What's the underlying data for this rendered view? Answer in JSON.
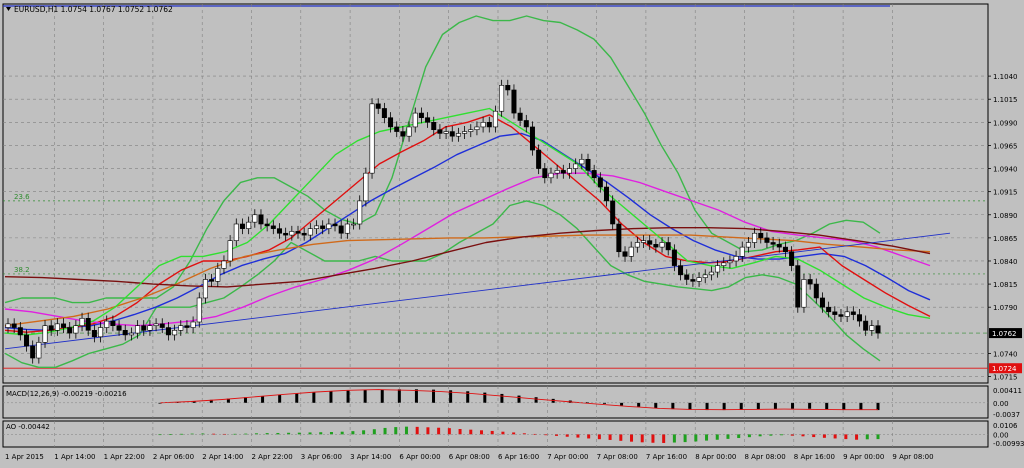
{
  "chart_data": [
    {
      "type": "candlestick",
      "panel": "main",
      "title": "EURUSD,H1  1.0754 1.0767 1.0752 1.0762",
      "symbol": "EURUSD,H1",
      "ohlc_header": "1.0754 1.0767 1.0752 1.0762",
      "ylim": [
        1.0708,
        1.1118
      ],
      "y_ticks": [
        1.104,
        1.1015,
        1.099,
        1.0965,
        1.094,
        1.0915,
        1.089,
        1.0865,
        1.084,
        1.0815,
        1.079,
        1.074,
        1.0715
      ],
      "y_ticks_labels": [
        "1.1040",
        "1.1015",
        "1.0990",
        "1.0965",
        "1.0940",
        "1.0915",
        "1.0890",
        "1.0865",
        "1.0840",
        "1.0815",
        "1.0790",
        "1.0740",
        "1.0715"
      ],
      "current_price": 1.0762,
      "current_price_label": "1.0762",
      "alert_price": 1.0724,
      "alert_price_label": "1.0724",
      "fib_levels": [
        {
          "label": "23.6",
          "value": 1.0905
        },
        {
          "label": "38.2",
          "value": 1.0826
        }
      ],
      "x_labels": [
        "1 Apr 2015",
        "1 Apr 14:00",
        "1 Apr 22:00",
        "2 Apr 06:00",
        "2 Apr 14:00",
        "2 Apr 22:00",
        "3 Apr 06:00",
        "3 Apr 14:00",
        "6 Apr 00:00",
        "6 Apr 08:00",
        "6 Apr 16:00",
        "7 Apr 00:00",
        "7 Apr 08:00",
        "7 Apr 16:00",
        "8 Apr 00:00",
        "8 Apr 08:00",
        "8 Apr 16:00",
        "9 Apr 00:00",
        "9 Apr 08:00"
      ],
      "candles_close": [
        1.0772,
        1.0768,
        1.076,
        1.0748,
        1.0735,
        1.0752,
        1.077,
        1.0765,
        1.0772,
        1.0768,
        1.0762,
        1.077,
        1.0778,
        1.0765,
        1.0758,
        1.0768,
        1.0775,
        1.077,
        1.0765,
        1.076,
        1.0762,
        1.077,
        1.0765,
        1.077,
        1.0772,
        1.0768,
        1.076,
        1.0765,
        1.077,
        1.0768,
        1.0774,
        1.08,
        1.082,
        1.0818,
        1.0832,
        1.084,
        1.0862,
        1.088,
        1.0875,
        1.0882,
        1.089,
        1.088,
        1.0878,
        1.0875,
        1.087,
        1.0868,
        1.0872,
        1.087,
        1.0868,
        1.0875,
        1.0878,
        1.0875,
        1.088,
        1.0878,
        1.087,
        1.088,
        1.088,
        1.0905,
        1.0935,
        1.101,
        1.1005,
        1.0995,
        1.0985,
        1.098,
        1.0975,
        1.0985,
        1.1,
        1.0995,
        1.099,
        1.0982,
        1.0978,
        1.098,
        1.0975,
        1.0978,
        1.098,
        1.0982,
        1.0985,
        1.099,
        1.0985,
        1.1002,
        1.103,
        1.1025,
        1.1,
        1.0992,
        1.0985,
        1.096,
        1.094,
        1.093,
        1.0935,
        1.0938,
        1.0935,
        1.094,
        1.0945,
        1.095,
        1.0938,
        1.093,
        1.092,
        1.0905,
        1.088,
        1.085,
        1.0845,
        1.0855,
        1.086,
        1.0862,
        1.0858,
        1.0855,
        1.086,
        1.0852,
        1.0835,
        1.0825,
        1.082,
        1.0818,
        1.0822,
        1.0825,
        1.0828,
        1.0835,
        1.0838,
        1.084,
        1.0845,
        1.0855,
        1.086,
        1.087,
        1.0865,
        1.086,
        1.0858,
        1.0855,
        1.085,
        1.0835,
        1.079,
        1.082,
        1.0815,
        1.08,
        1.079,
        1.0785,
        1.0782,
        1.078,
        1.0785,
        1.0782,
        1.0775,
        1.0765,
        1.077,
        1.0762
      ],
      "series": [
        {
          "name": "BB upper",
          "color": "#3cb84a",
          "values": [
            1.0795,
            1.08,
            1.08,
            1.08,
            1.0795,
            1.0795,
            1.08,
            1.08,
            1.08,
            1.08,
            1.0812,
            1.084,
            1.0875,
            1.0905,
            1.0925,
            1.093,
            1.093,
            1.092,
            1.091,
            1.0895,
            1.0885,
            1.088,
            1.089,
            1.093,
            1.099,
            1.105,
            1.1085,
            1.1098,
            1.1105,
            1.11,
            1.11,
            1.1105,
            1.11,
            1.1098,
            1.109,
            1.108,
            1.106,
            1.103,
            1.1,
            1.0965,
            1.0935,
            1.0895,
            1.087,
            1.086,
            1.085,
            1.0852,
            1.0858,
            1.0862,
            1.087,
            1.088,
            1.0884,
            1.0882,
            1.087
          ]
        },
        {
          "name": "BB lower",
          "color": "#3cb84a",
          "values": [
            1.074,
            1.073,
            1.0725,
            1.0725,
            1.0732,
            1.074,
            1.0745,
            1.075,
            1.076,
            1.079,
            1.079,
            1.079,
            1.0795,
            1.08,
            1.0812,
            1.0825,
            1.084,
            1.086,
            1.085,
            1.084,
            1.084,
            1.084,
            1.0845,
            1.084,
            1.084,
            1.084,
            1.0848,
            1.086,
            1.087,
            1.088,
            1.09,
            1.0905,
            1.09,
            1.089,
            1.0875,
            1.0855,
            1.0835,
            1.0825,
            1.0818,
            1.0815,
            1.0812,
            1.081,
            1.0808,
            1.0812,
            1.0822,
            1.0825,
            1.0822,
            1.0815,
            1.0798,
            1.078,
            1.076,
            1.0745,
            1.0732
          ]
        },
        {
          "name": "MA blue",
          "color": "#1f2fd8",
          "values": [
            1.0768,
            1.0766,
            1.0765,
            1.0768,
            1.077,
            1.0775,
            1.0782,
            1.079,
            1.08,
            1.0812,
            1.0825,
            1.0835,
            1.0842,
            1.0848,
            1.086,
            1.0875,
            1.089,
            1.0905,
            1.0918,
            1.093,
            1.0942,
            1.0955,
            1.0965,
            1.0975,
            1.0978,
            1.097,
            1.0955,
            1.094,
            1.0925,
            1.0908,
            1.089,
            1.0875,
            1.0862,
            1.0852,
            1.0845,
            1.0842,
            1.0842,
            1.0845,
            1.0848,
            1.0845,
            1.0835,
            1.0822,
            1.0808,
            1.0798
          ]
        },
        {
          "name": "MA red",
          "color": "#e01010",
          "values": [
            1.0765,
            1.0763,
            1.0765,
            1.0768,
            1.0772,
            1.078,
            1.0795,
            1.0815,
            1.083,
            1.084,
            1.084,
            1.0845,
            1.0852,
            1.0865,
            1.0885,
            1.0905,
            1.0925,
            1.0945,
            1.0958,
            1.097,
            1.0985,
            1.099,
            1.0998,
            1.0985,
            1.0965,
            1.0945,
            1.0925,
            1.0905,
            1.088,
            1.086,
            1.0845,
            1.084,
            1.0838,
            1.084,
            1.0845,
            1.085,
            1.0852,
            1.0855,
            1.0835,
            1.082,
            1.0805,
            1.0792,
            1.078
          ]
        },
        {
          "name": "MA magenta",
          "color": "#e020e0",
          "values": [
            1.0788,
            1.0785,
            1.078,
            1.0775,
            1.0772,
            1.077,
            1.0772,
            1.0775,
            1.078,
            1.079,
            1.0802,
            1.0812,
            1.082,
            1.083,
            1.0842,
            1.0858,
            1.0875,
            1.0892,
            1.0905,
            1.0918,
            1.093,
            1.0935,
            1.0935,
            1.0932,
            1.0925,
            1.0915,
            1.0905,
            1.0895,
            1.0882,
            1.0872,
            1.0868,
            1.0865,
            1.0862,
            1.0855,
            1.0845,
            1.0835
          ]
        },
        {
          "name": "MA orange",
          "color": "#d06a1a",
          "values": [
            1.077,
            1.0775,
            1.078,
            1.0788,
            1.08,
            1.0815,
            1.0832,
            1.0845,
            1.0852,
            1.0858,
            1.0862,
            1.0863,
            1.0864,
            1.0865,
            1.0865,
            1.0866,
            1.0867,
            1.0868,
            1.0868,
            1.0868,
            1.0868,
            1.0866,
            1.0864,
            1.0862,
            1.0858,
            1.0855,
            1.0852,
            1.085
          ]
        },
        {
          "name": "MA dark red",
          "color": "#7a1010",
          "values": [
            1.0823,
            1.0822,
            1.082,
            1.0818,
            1.0815,
            1.0813,
            1.0812,
            1.0815,
            1.0818,
            1.0825,
            1.0832,
            1.084,
            1.085,
            1.086,
            1.0866,
            1.087,
            1.0873,
            1.0875,
            1.0876,
            1.0876,
            1.0875,
            1.0872,
            1.0868,
            1.0862,
            1.0856,
            1.0848
          ]
        },
        {
          "name": "MA green",
          "color": "#30e030",
          "values": [
            1.0762,
            1.076,
            1.0763,
            1.0768,
            1.0775,
            1.079,
            1.0812,
            1.0835,
            1.0845,
            1.0845,
            1.085,
            1.086,
            1.088,
            1.0905,
            1.093,
            1.0955,
            1.097,
            1.098,
            1.0985,
            1.099,
            1.0995,
            1.1,
            1.1005,
            1.099,
            1.0975,
            1.096,
            1.0945,
            1.092,
            1.09,
            1.088,
            1.086,
            1.084,
            1.0835,
            1.0832,
            1.0838,
            1.0845,
            1.0842,
            1.083,
            1.0815,
            1.08,
            1.079,
            1.0782,
            1.0778
          ]
        },
        {
          "name": "Trendline",
          "color": "#2030c8",
          "values": [
            1.0745,
            1.087
          ]
        }
      ]
    },
    {
      "type": "bar",
      "panel": "macd",
      "label": "MACD(12,26,9) -0.00219 -0.00216",
      "y_ticks_labels": [
        "0.00411",
        "0.00",
        "-0.0037"
      ],
      "values": [
        0.0,
        0.0002,
        0.0005,
        0.0009,
        0.0013,
        0.0017,
        0.002,
        0.0024,
        0.0028,
        0.0032,
        0.0035,
        0.0037,
        0.0039,
        0.004,
        0.0041,
        0.0041,
        0.004,
        0.0038,
        0.0035,
        0.0031,
        0.0027,
        0.0022,
        0.0017,
        0.0012,
        0.0007,
        0.0002,
        -0.0003,
        -0.0008,
        -0.0012,
        -0.0016,
        -0.0019,
        -0.0021,
        -0.0022,
        -0.0022,
        -0.0021,
        -0.002,
        -0.0019,
        -0.0018,
        -0.0018,
        -0.0019,
        -0.002,
        -0.0021,
        -0.0022
      ],
      "signal_values": [
        0.0,
        0.0004,
        0.001,
        0.0018,
        0.0026,
        0.0033,
        0.0038,
        0.004,
        0.0038,
        0.0034,
        0.0028,
        0.002,
        0.0012,
        0.0004,
        -0.0004,
        -0.0011,
        -0.0017,
        -0.002,
        -0.0021,
        -0.002,
        -0.0019,
        -0.002,
        -0.0021,
        -0.0021
      ]
    },
    {
      "type": "bar",
      "panel": "ao",
      "label": "AO -0.00442",
      "y_ticks_labels": [
        "0.0106",
        "0.00",
        "-0.00993"
      ],
      "values": [
        0.0001,
        0.0003,
        0.0005,
        0.0007,
        0.0008,
        0.0006,
        0.0004,
        0.0005,
        0.0007,
        0.001,
        0.0012,
        0.0013,
        0.0015,
        0.0016,
        0.0018,
        0.002,
        0.0022,
        0.0025,
        0.003,
        0.0038,
        0.0048,
        0.006,
        0.0068,
        0.0072,
        0.007,
        0.0066,
        0.0062,
        0.0058,
        0.005,
        0.0044,
        0.0038,
        0.0032,
        0.0025,
        0.0018,
        0.001,
        0.0004,
        -0.0006,
        -0.0014,
        -0.0022,
        -0.003,
        -0.0038,
        -0.0045,
        -0.0052,
        -0.006,
        -0.0068,
        -0.0074,
        -0.0078,
        -0.008,
        -0.0076,
        -0.0072,
        -0.0066,
        -0.0058,
        -0.005,
        -0.0042,
        -0.0034,
        -0.0026,
        -0.0018,
        -0.0012,
        -0.0008,
        -0.0012,
        -0.0018,
        -0.0025,
        -0.0032,
        -0.0038,
        -0.0044,
        -0.005,
        -0.0046,
        -0.0044
      ]
    }
  ],
  "colors": {
    "background": "#c0c0c0",
    "grid": "#808080",
    "bull": "#ffffff",
    "bear": "#000000",
    "price_tag": "#000000",
    "alert_tag": "#e01010"
  }
}
